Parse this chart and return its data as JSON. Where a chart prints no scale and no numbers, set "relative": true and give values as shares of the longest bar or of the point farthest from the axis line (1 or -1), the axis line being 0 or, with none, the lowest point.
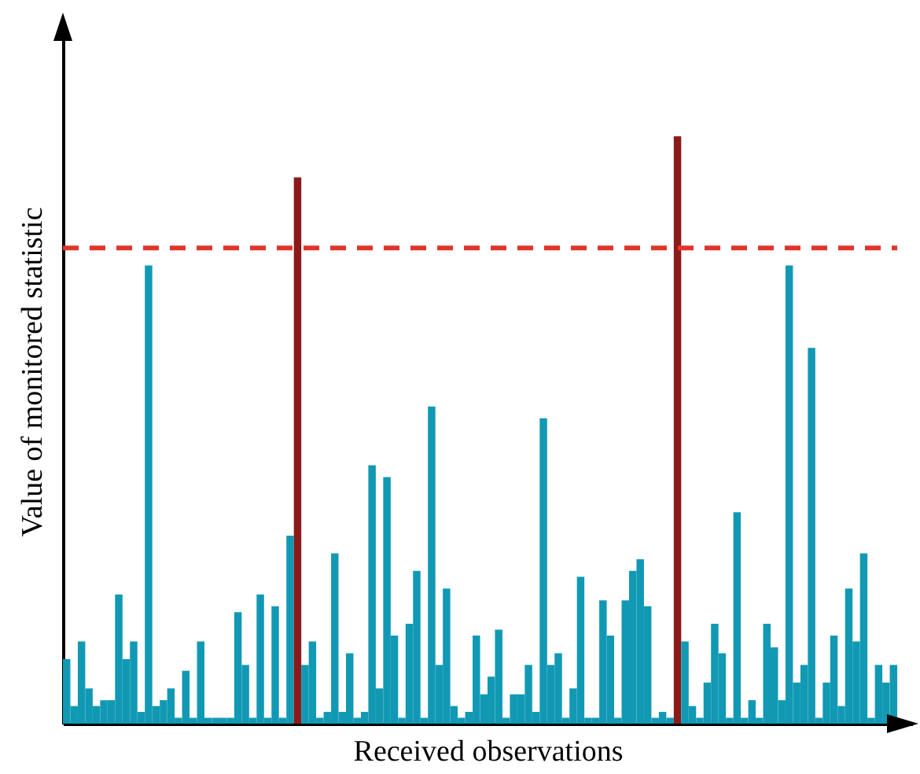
{
  "chart_data": {
    "type": "bar",
    "relative": true,
    "xlabel": "Received observations",
    "ylabel": "Value of monitored statistic",
    "categories": [
      null,
      null,
      null,
      null,
      null,
      null,
      null,
      null,
      null,
      null,
      null,
      null,
      null,
      null,
      null,
      null,
      null,
      null,
      null,
      null,
      null,
      null,
      null,
      null,
      null,
      null,
      null,
      null,
      null,
      null,
      null,
      null,
      null,
      null,
      null,
      null,
      null,
      null,
      null,
      null,
      null,
      null,
      null,
      null,
      null,
      null,
      null,
      null,
      null,
      null,
      null,
      null,
      null,
      null,
      null,
      null,
      null,
      null,
      null,
      null,
      null,
      null,
      null,
      null,
      null,
      null,
      null,
      null,
      null,
      null,
      null,
      null,
      null,
      null,
      null,
      null,
      null,
      null,
      null,
      null,
      null,
      null,
      null,
      null,
      null,
      null,
      null,
      null,
      null,
      null,
      null,
      null,
      null,
      null,
      null,
      null,
      null,
      null,
      null,
      null,
      null,
      null,
      null,
      null,
      null,
      null,
      null,
      null,
      null,
      null,
      null,
      null
    ],
    "values": [
      0.11,
      0.03,
      0.14,
      0.06,
      0.03,
      0.04,
      0.04,
      0.22,
      0.11,
      0.14,
      0.02,
      0.78,
      0.03,
      0.04,
      0.06,
      0.01,
      0.09,
      0.01,
      0.14,
      0.01,
      0.01,
      0.01,
      0.01,
      0.19,
      0.1,
      0.01,
      0.22,
      0.01,
      0.2,
      0.01,
      0.32,
      0.93,
      0.1,
      0.14,
      0.01,
      0.02,
      0.29,
      0.02,
      0.12,
      0.01,
      0.02,
      0.44,
      0.06,
      0.42,
      0.15,
      0.01,
      0.17,
      0.26,
      0.01,
      0.54,
      0.1,
      0.23,
      0.03,
      0.01,
      0.02,
      0.15,
      0.05,
      0.08,
      0.16,
      0.01,
      0.05,
      0.05,
      0.1,
      0.02,
      0.52,
      0.1,
      0.12,
      0.01,
      0.06,
      0.25,
      0.01,
      0.01,
      0.21,
      0.15,
      0.01,
      0.21,
      0.26,
      0.28,
      0.2,
      0.01,
      0.02,
      0.01,
      1,
      0.14,
      0.03,
      0.01,
      0.07,
      0.17,
      0.12,
      0.01,
      0.36,
      0.01,
      0.04,
      0.01,
      0.17,
      0.13,
      0.04,
      0.78,
      0.07,
      0.1,
      0.64,
      0.01,
      0.07,
      0.15,
      0.03,
      0.23,
      0.14,
      0.29,
      0.01,
      0.1,
      0.07,
      0.1
    ],
    "colors": [
      "#1199b4",
      "#1199b4",
      "#1199b4",
      "#1199b4",
      "#1199b4",
      "#1199b4",
      "#1199b4",
      "#1199b4",
      "#1199b4",
      "#1199b4",
      "#1199b4",
      "#1199b4",
      "#1199b4",
      "#1199b4",
      "#1199b4",
      "#1199b4",
      "#1199b4",
      "#1199b4",
      "#1199b4",
      "#1199b4",
      "#1199b4",
      "#1199b4",
      "#1199b4",
      "#1199b4",
      "#1199b4",
      "#1199b4",
      "#1199b4",
      "#1199b4",
      "#1199b4",
      "#1199b4",
      "#1199b4",
      "#8b1a1a",
      "#1199b4",
      "#1199b4",
      "#1199b4",
      "#1199b4",
      "#1199b4",
      "#1199b4",
      "#1199b4",
      "#1199b4",
      "#1199b4",
      "#1199b4",
      "#1199b4",
      "#1199b4",
      "#1199b4",
      "#1199b4",
      "#1199b4",
      "#1199b4",
      "#1199b4",
      "#1199b4",
      "#1199b4",
      "#1199b4",
      "#1199b4",
      "#1199b4",
      "#1199b4",
      "#1199b4",
      "#1199b4",
      "#1199b4",
      "#1199b4",
      "#1199b4",
      "#1199b4",
      "#1199b4",
      "#1199b4",
      "#1199b4",
      "#1199b4",
      "#1199b4",
      "#1199b4",
      "#1199b4",
      "#1199b4",
      "#1199b4",
      "#1199b4",
      "#1199b4",
      "#1199b4",
      "#1199b4",
      "#1199b4",
      "#1199b4",
      "#1199b4",
      "#1199b4",
      "#1199b4",
      "#1199b4",
      "#1199b4",
      "#1199b4",
      "#8b1a1a",
      "#1199b4",
      "#1199b4",
      "#1199b4",
      "#1199b4",
      "#1199b4",
      "#1199b4",
      "#1199b4",
      "#1199b4",
      "#1199b4",
      "#1199b4",
      "#1199b4",
      "#1199b4",
      "#1199b4",
      "#1199b4",
      "#1199b4",
      "#1199b4",
      "#1199b4",
      "#1199b4",
      "#1199b4",
      "#1199b4",
      "#1199b4",
      "#1199b4",
      "#1199b4",
      "#1199b4",
      "#1199b4",
      "#1199b4",
      "#1199b4",
      "#1199b4",
      "#1199b4"
    ],
    "ref_lines": [
      {
        "axis": "y",
        "value": 0.81,
        "color": "#e0352b",
        "line_style": "dashed"
      }
    ]
  }
}
